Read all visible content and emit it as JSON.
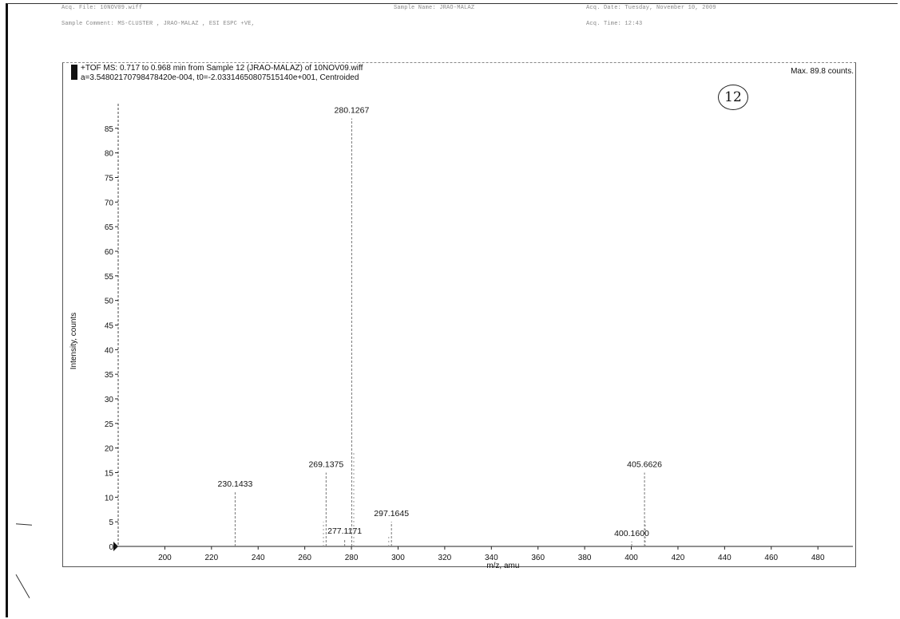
{
  "header": {
    "acq_file": "Acq. File: 10NOV09.wiff",
    "sample_comment": "Sample Comment: MS-CLUSTER , JRAO-MALAZ , ESI ESPC +VE,",
    "sample_name": "Sample Name: JRAO-MALAZ",
    "acq_date": "Acq. Date: Tuesday, November 10, 2009",
    "acq_time": "Acq. Time: 12:43"
  },
  "spectrum_info": {
    "line1": "+TOF MS: 0.717 to 0.968 min from Sample 12 (JRAO-MALAZ) of 10NOV09.wiff",
    "line2": "a=3.54802170798478420e-004, t0=-2.03314650807515140e+001, Centroided",
    "max_label": "Max. 89.8 counts."
  },
  "annotation": {
    "circled_number": "12"
  },
  "chart_data": {
    "type": "bar",
    "xlabel": "m/z, amu",
    "ylabel": "Intensity, counts",
    "xlim": [
      180,
      495
    ],
    "ylim": [
      0,
      90
    ],
    "xticks": [
      200,
      220,
      240,
      260,
      280,
      300,
      320,
      340,
      360,
      380,
      400,
      420,
      440,
      460,
      480
    ],
    "yticks": [
      0,
      5,
      10,
      15,
      20,
      25,
      30,
      35,
      40,
      45,
      50,
      55,
      60,
      65,
      70,
      75,
      80,
      85
    ],
    "peaks": [
      {
        "x": 230.1433,
        "y": 11,
        "label": "230.1433"
      },
      {
        "x": 269.1375,
        "y": 15,
        "label": "269.1375"
      },
      {
        "x": 277.1171,
        "y": 1.5,
        "label": "277.1171"
      },
      {
        "x": 280.1267,
        "y": 87,
        "label": "280.1267"
      },
      {
        "x": 297.1645,
        "y": 5,
        "label": "297.1645"
      },
      {
        "x": 400.16,
        "y": 1,
        "label": "400.1600"
      },
      {
        "x": 405.6626,
        "y": 15,
        "label": "405.6626"
      }
    ],
    "minor_peaks": [
      {
        "x": 268,
        "y": 5
      },
      {
        "x": 281,
        "y": 19
      },
      {
        "x": 296,
        "y": 2
      },
      {
        "x": 406,
        "y": 5
      }
    ]
  }
}
